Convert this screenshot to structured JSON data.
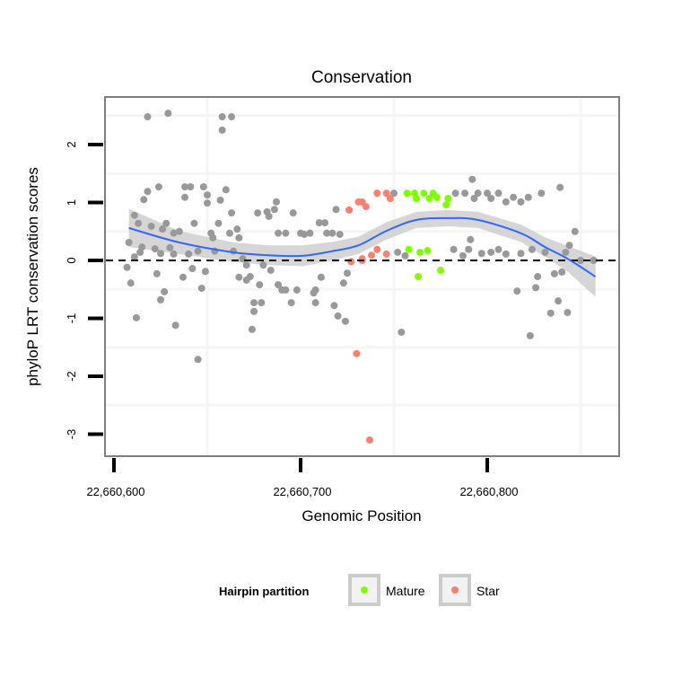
{
  "chart_data": {
    "type": "scatter",
    "title": "Conservation",
    "xlabel": "Genomic Position",
    "ylabel": "phyloP LRT conservation scores",
    "x_base": 22660600,
    "xlim_offset": [
      -5,
      270
    ],
    "ylim": [
      -3.3,
      2.85
    ],
    "x_ticks": [
      {
        "offset": 0,
        "label": "22,660,600"
      },
      {
        "offset": 100,
        "label": "22,660,700"
      },
      {
        "offset": 200,
        "label": "22,660,800"
      }
    ],
    "y_ticks": [
      {
        "value": 2,
        "label": "2"
      },
      {
        "value": 1,
        "label": "1"
      },
      {
        "value": 0,
        "label": "0"
      },
      {
        "value": -1,
        "label": "-1"
      },
      {
        "value": -2,
        "label": "-2"
      },
      {
        "value": -3,
        "label": "-3"
      }
    ],
    "reference_line": {
      "value": 0,
      "style": "dashed"
    },
    "colors": {
      "other": "#999999",
      "Mature": "#7FFF00",
      "Star": "#FA8072",
      "smooth": "#3366FF",
      "band": "#CCCCCC"
    },
    "legend": {
      "title": "Hairpin partition",
      "position": "bottom",
      "entries": [
        {
          "label": "Mature",
          "key": "Mature"
        },
        {
          "label": "Star",
          "key": "Star"
        }
      ]
    },
    "series": [
      {
        "name": "other",
        "points": [
          [
            18,
            2.48
          ],
          [
            29,
            2.54
          ],
          [
            58,
            2.48
          ],
          [
            63,
            2.48
          ],
          [
            58,
            2.25
          ],
          [
            18,
            1.19
          ],
          [
            24,
            1.27
          ],
          [
            38,
            1.27
          ],
          [
            41,
            1.27
          ],
          [
            48,
            1.27
          ],
          [
            50,
            1.13
          ],
          [
            60,
            1.22
          ],
          [
            38,
            1.09
          ],
          [
            16,
            1.05
          ],
          [
            57,
            1.04
          ],
          [
            50,
            0.99
          ],
          [
            11,
            0.78
          ],
          [
            13,
            0.64
          ],
          [
            20,
            0.59
          ],
          [
            28,
            0.64
          ],
          [
            26,
            0.54
          ],
          [
            35,
            0.5
          ],
          [
            32,
            0.47
          ],
          [
            43,
            0.64
          ],
          [
            56,
            0.64
          ],
          [
            52,
            0.47
          ],
          [
            53,
            0.39
          ],
          [
            63,
            0.82
          ],
          [
            66,
            0.54
          ],
          [
            62,
            0.47
          ],
          [
            67,
            0.39
          ],
          [
            77,
            0.82
          ],
          [
            82,
            0.84
          ],
          [
            83,
            0.76
          ],
          [
            87,
            1.01
          ],
          [
            86,
            0.88
          ],
          [
            96,
            0.82
          ],
          [
            110,
            0.65
          ],
          [
            113,
            0.65
          ],
          [
            119,
            0.88
          ],
          [
            88,
            0.47
          ],
          [
            92,
            0.47
          ],
          [
            100,
            0.47
          ],
          [
            102,
            0.45
          ],
          [
            105,
            0.47
          ],
          [
            114,
            0.47
          ],
          [
            117,
            0.47
          ],
          [
            121,
            0.45
          ],
          [
            8,
            0.31
          ],
          [
            15,
            0.23
          ],
          [
            14,
            0.14
          ],
          [
            11,
            0.06
          ],
          [
            22,
            0.2
          ],
          [
            25,
            0.12
          ],
          [
            30,
            0.22
          ],
          [
            32,
            0.11
          ],
          [
            40,
            0.11
          ],
          [
            45,
            0.16
          ],
          [
            54,
            0.16
          ],
          [
            64,
            0.16
          ],
          [
            69,
            0.03
          ],
          [
            71,
            -0.08
          ],
          [
            80,
            -0.08
          ],
          [
            84,
            -0.17
          ],
          [
            7,
            -0.12
          ],
          [
            9,
            -0.39
          ],
          [
            23,
            -0.23
          ],
          [
            37,
            -0.29
          ],
          [
            42,
            -0.14
          ],
          [
            49,
            -0.19
          ],
          [
            67,
            -0.29
          ],
          [
            71,
            -0.34
          ],
          [
            73,
            -0.28
          ],
          [
            78,
            -0.42
          ],
          [
            88,
            -0.42
          ],
          [
            90,
            -0.51
          ],
          [
            92,
            -0.51
          ],
          [
            98,
            -0.51
          ],
          [
            111,
            -0.29
          ],
          [
            108,
            -0.51
          ],
          [
            107,
            -0.56
          ],
          [
            125,
            -0.22
          ],
          [
            123,
            -0.39
          ],
          [
            27,
            -0.54
          ],
          [
            25,
            -0.68
          ],
          [
            47,
            -0.48
          ],
          [
            75,
            -0.73
          ],
          [
            79,
            -0.73
          ],
          [
            95,
            -0.73
          ],
          [
            108,
            -0.73
          ],
          [
            118,
            -0.78
          ],
          [
            75,
            -0.88
          ],
          [
            120,
            -0.96
          ],
          [
            124,
            -1.05
          ],
          [
            12,
            -0.99
          ],
          [
            33,
            -1.12
          ],
          [
            74,
            -1.19
          ],
          [
            45,
            -1.71
          ],
          [
            150,
            1.16
          ],
          [
            183,
            1.16
          ],
          [
            188,
            1.16
          ],
          [
            192,
            1.4
          ],
          [
            195,
            1.16
          ],
          [
            200,
            1.16
          ],
          [
            206,
            1.16
          ],
          [
            193,
            1.07
          ],
          [
            202,
            1.07
          ],
          [
            210,
            1.01
          ],
          [
            214,
            1.09
          ],
          [
            218,
            1.01
          ],
          [
            222,
            1.09
          ],
          [
            229,
            1.16
          ],
          [
            239,
            1.26
          ],
          [
            191,
            0.36
          ],
          [
            247,
            0.5
          ],
          [
            244,
            0.26
          ],
          [
            242,
            0.14
          ],
          [
            152,
            0.14
          ],
          [
            156,
            0.08
          ],
          [
            182,
            0.19
          ],
          [
            187,
            0.08
          ],
          [
            190,
            0.19
          ],
          [
            197,
            0.12
          ],
          [
            202,
            0.14
          ],
          [
            206,
            0.19
          ],
          [
            210,
            0.11
          ],
          [
            218,
            0.12
          ],
          [
            224,
            0.19
          ],
          [
            231,
            0.14
          ],
          [
            250,
            0
          ],
          [
            257,
            0
          ],
          [
            227,
            -0.28
          ],
          [
            236,
            -0.23
          ],
          [
            240,
            -0.2
          ],
          [
            216,
            -0.53
          ],
          [
            226,
            -0.47
          ],
          [
            238,
            -0.7
          ],
          [
            234,
            -0.91
          ],
          [
            243,
            -0.9
          ],
          [
            154,
            -1.24
          ],
          [
            223,
            -1.3
          ]
        ]
      },
      {
        "name": "Star",
        "points": [
          [
            127,
            -0.02
          ],
          [
            133,
            0.03
          ],
          [
            126,
            0.87
          ],
          [
            131,
            1.01
          ],
          [
            141,
            1.16
          ],
          [
            146,
            1.16
          ],
          [
            148,
            1.07
          ],
          [
            133,
            1.01
          ],
          [
            135,
            0.93
          ],
          [
            138,
            0.09
          ],
          [
            141,
            0.19
          ],
          [
            146,
            0.11
          ],
          [
            133,
            0
          ],
          [
            130,
            -1.61
          ],
          [
            137,
            -3.1
          ]
        ]
      },
      {
        "name": "Mature",
        "points": [
          [
            157,
            1.16
          ],
          [
            161,
            1.16
          ],
          [
            162,
            1.07
          ],
          [
            166,
            1.16
          ],
          [
            169,
            1.07
          ],
          [
            171,
            1.16
          ],
          [
            173,
            1.09
          ],
          [
            178,
            0.96
          ],
          [
            179,
            1.07
          ],
          [
            158,
            0.19
          ],
          [
            164,
            0.14
          ],
          [
            168,
            0.17
          ],
          [
            163,
            -0.28
          ],
          [
            175,
            -0.17
          ]
        ]
      }
    ],
    "smooth": {
      "method": "loess",
      "points": [
        [
          8,
          0.56
        ],
        [
          35,
          0.31
        ],
        [
          64,
          0.14
        ],
        [
          83,
          0.09
        ],
        [
          101,
          0.08
        ],
        [
          117,
          0.16
        ],
        [
          131,
          0.26
        ],
        [
          146,
          0.51
        ],
        [
          162,
          0.7
        ],
        [
          179,
          0.73
        ],
        [
          195,
          0.7
        ],
        [
          218,
          0.47
        ],
        [
          231,
          0.23
        ],
        [
          243,
          0.03
        ],
        [
          258,
          -0.28
        ]
      ],
      "se": [
        0.33,
        0.2,
        0.17,
        0.17,
        0.18,
        0.16,
        0.15,
        0.15,
        0.14,
        0.14,
        0.14,
        0.15,
        0.17,
        0.22,
        0.35
      ]
    }
  }
}
